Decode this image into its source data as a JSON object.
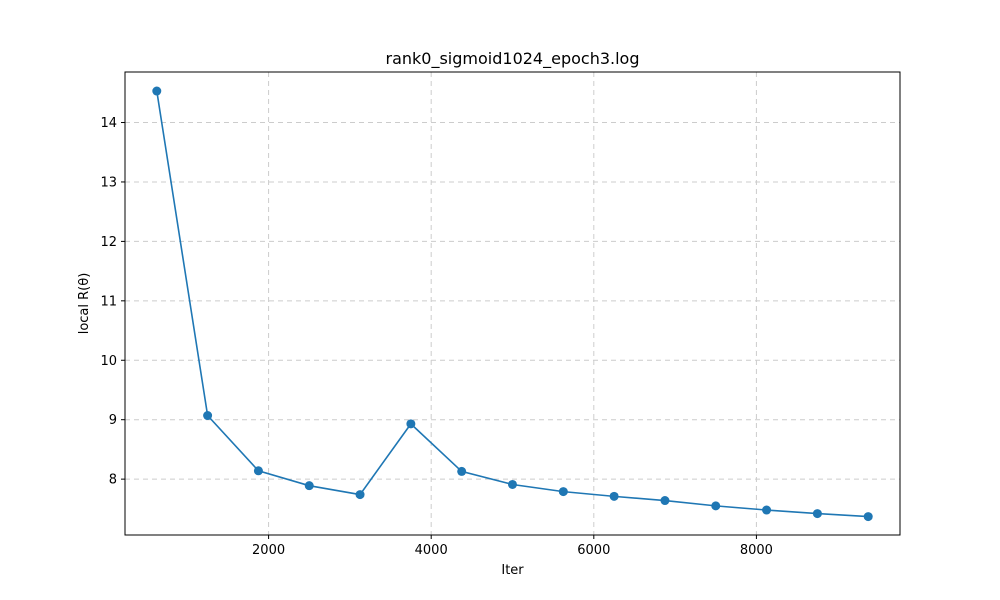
{
  "chart_data": {
    "type": "line",
    "title": "rank0_sigmoid1024_epoch3.log",
    "xlabel": "Iter",
    "ylabel": "local R(θ)",
    "xlim": [
      234,
      9766
    ],
    "ylim": [
      7.06,
      14.85
    ],
    "xticks": [
      2000,
      4000,
      6000,
      8000
    ],
    "yticks": [
      8,
      9,
      10,
      11,
      12,
      13,
      14
    ],
    "grid": true,
    "series": [
      {
        "color": "#1f77b4",
        "marker": "circle",
        "x": [
          625,
          1250,
          1875,
          2500,
          3125,
          3750,
          4375,
          5000,
          5625,
          6250,
          6875,
          7500,
          8125,
          8750,
          9375
        ],
        "y": [
          14.53,
          9.07,
          8.14,
          7.89,
          7.74,
          8.93,
          8.13,
          7.91,
          7.79,
          7.71,
          7.64,
          7.55,
          7.48,
          7.42,
          7.37
        ]
      }
    ]
  }
}
